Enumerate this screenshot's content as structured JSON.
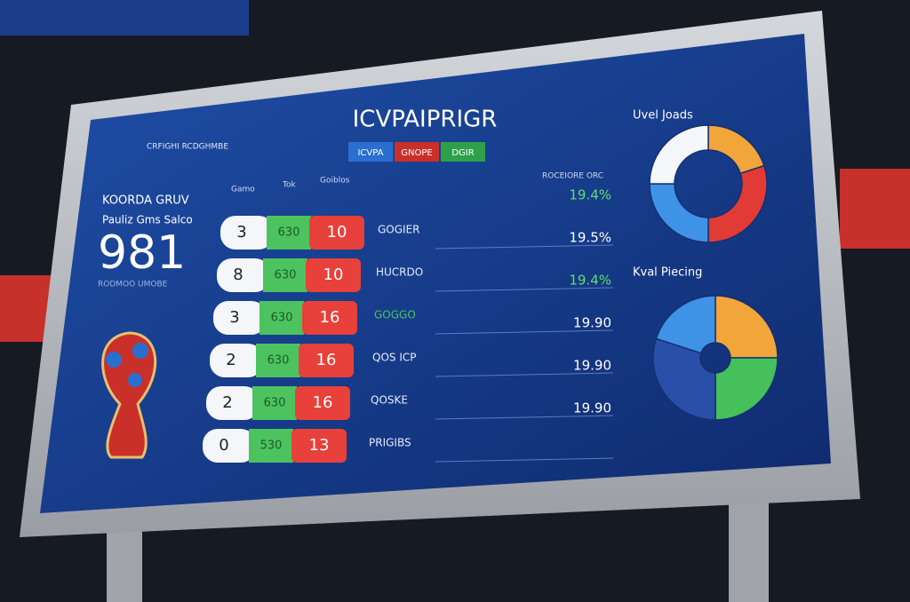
{
  "header": {
    "title": "ICVPAIPRIGR",
    "tabs": [
      "ICVPA",
      "GNOPE",
      "DGIR"
    ],
    "brand": "CRFIGHI RCDGHMBE"
  },
  "left_panel": {
    "heading": "KOORDA GRUV",
    "subheading": "Pauliz Gms Salco",
    "score": "981",
    "caption": "RODMOO UMOBE"
  },
  "table": {
    "columns": [
      "Gamo",
      "Tok",
      "Goiblos",
      "ROCEIORE ORC"
    ],
    "rows": [
      {
        "rank": "3",
        "points": "630",
        "goals": "10",
        "name": "GOGIER",
        "stat": "19.4%"
      },
      {
        "rank": "8",
        "points": "630",
        "goals": "10",
        "name": "HUCRDO",
        "stat": "19.5%"
      },
      {
        "rank": "3",
        "points": "630",
        "goals": "16",
        "name": "GOGGO",
        "stat": "19.4%"
      },
      {
        "rank": "2",
        "points": "630",
        "goals": "16",
        "name": "QOS ICP",
        "stat": "19.90"
      },
      {
        "rank": "2",
        "points": "630",
        "goals": "16",
        "name": "QOSKE",
        "stat": "19.90"
      },
      {
        "rank": "0",
        "points": "530",
        "goals": "13",
        "name": "PRIGIBS",
        "stat": "19.90"
      }
    ]
  },
  "charts": [
    {
      "title": "Uvel Joads",
      "segments": [
        {
          "value": 20,
          "color": "#f2a63a"
        },
        {
          "value": 30,
          "color": "#e23a34"
        },
        {
          "value": 25,
          "color": "#3f93e6"
        },
        {
          "value": 25,
          "color": "#f4f6fa"
        }
      ]
    },
    {
      "title": "Kval Piecing",
      "segments": [
        {
          "value": 25,
          "color": "#f2a63a"
        },
        {
          "value": 25,
          "color": "#46c05a"
        },
        {
          "value": 30,
          "color": "#2a4fa8"
        },
        {
          "value": 20,
          "color": "#3f93e6"
        }
      ]
    }
  ]
}
